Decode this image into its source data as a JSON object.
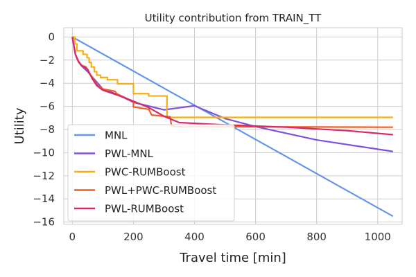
{
  "chart_data": {
    "type": "line",
    "title": "Utility contribution from TRAIN_TT",
    "xlabel": "Travel time [min]",
    "ylabel": "Utility",
    "xlim": [
      -28,
      1080
    ],
    "ylim": [
      -16.2,
      0.8
    ],
    "xticks": [
      0,
      200,
      400,
      600,
      800,
      1000
    ],
    "yticks": [
      0,
      -2,
      -4,
      -6,
      -8,
      -10,
      -12,
      -14,
      -16
    ],
    "xtick_labels": [
      "0",
      "200",
      "400",
      "600",
      "800",
      "1000"
    ],
    "ytick_labels": [
      "0",
      "−2",
      "−4",
      "−6",
      "−8",
      "−10",
      "−12",
      "−14",
      "−16"
    ],
    "grid": true,
    "legend_position": "lower-left",
    "series": [
      {
        "name": "MNL",
        "color": "#6495ed",
        "points": [
          [
            0,
            0
          ],
          [
            1050,
            -15.5
          ]
        ]
      },
      {
        "name": "PWL-MNL",
        "color": "#7b52db",
        "points": [
          [
            0,
            0
          ],
          [
            10,
            -1.5
          ],
          [
            20,
            -2.15
          ],
          [
            30,
            -2.5
          ],
          [
            50,
            -3.0
          ],
          [
            100,
            -4.5
          ],
          [
            150,
            -5.0
          ],
          [
            200,
            -5.65
          ],
          [
            300,
            -6.3
          ],
          [
            400,
            -5.95
          ],
          [
            500,
            -7.05
          ],
          [
            600,
            -7.75
          ],
          [
            800,
            -8.9
          ],
          [
            1050,
            -9.9
          ]
        ]
      },
      {
        "name": "PWC-RUMBoost",
        "color": "#f5ad16",
        "points": [
          [
            0,
            0
          ],
          [
            8,
            0
          ],
          [
            8,
            -0.6
          ],
          [
            15,
            -0.6
          ],
          [
            15,
            -1.2
          ],
          [
            35,
            -1.2
          ],
          [
            35,
            -1.5
          ],
          [
            48,
            -1.5
          ],
          [
            48,
            -1.8
          ],
          [
            55,
            -1.8
          ],
          [
            55,
            -2.2
          ],
          [
            62,
            -2.2
          ],
          [
            62,
            -2.6
          ],
          [
            72,
            -2.6
          ],
          [
            72,
            -3.0
          ],
          [
            80,
            -3.0
          ],
          [
            80,
            -3.3
          ],
          [
            92,
            -3.3
          ],
          [
            92,
            -3.5
          ],
          [
            115,
            -3.5
          ],
          [
            115,
            -3.7
          ],
          [
            148,
            -3.7
          ],
          [
            148,
            -4.05
          ],
          [
            200,
            -4.05
          ],
          [
            200,
            -4.9
          ],
          [
            250,
            -4.9
          ],
          [
            250,
            -5.1
          ],
          [
            310,
            -5.1
          ],
          [
            310,
            -6.95
          ],
          [
            1050,
            -6.95
          ]
        ]
      },
      {
        "name": "PWL+PWC-RUMBoost",
        "color": "#f25b1b",
        "points": [
          [
            0,
            0
          ],
          [
            10,
            -1.5
          ],
          [
            20,
            -2.15
          ],
          [
            30,
            -2.45
          ],
          [
            45,
            -2.6
          ],
          [
            60,
            -3.3
          ],
          [
            80,
            -4.1
          ],
          [
            100,
            -4.5
          ],
          [
            140,
            -4.7
          ],
          [
            145,
            -4.9
          ],
          [
            200,
            -5.6
          ],
          [
            200,
            -6.05
          ],
          [
            250,
            -6.25
          ],
          [
            260,
            -6.75
          ],
          [
            320,
            -6.9
          ],
          [
            325,
            -7.7
          ],
          [
            340,
            -7.75
          ],
          [
            1050,
            -7.8
          ]
        ]
      },
      {
        "name": "PWL-RUMBoost",
        "color": "#d62869",
        "points": [
          [
            0,
            0
          ],
          [
            10,
            -1.5
          ],
          [
            20,
            -2.1
          ],
          [
            30,
            -2.45
          ],
          [
            50,
            -2.8
          ],
          [
            65,
            -3.6
          ],
          [
            80,
            -4.2
          ],
          [
            100,
            -4.6
          ],
          [
            150,
            -5.05
          ],
          [
            200,
            -5.55
          ],
          [
            250,
            -6.1
          ],
          [
            300,
            -6.85
          ],
          [
            350,
            -7.4
          ],
          [
            500,
            -7.6
          ],
          [
            700,
            -7.8
          ],
          [
            900,
            -8.1
          ],
          [
            1050,
            -8.45
          ]
        ]
      }
    ]
  }
}
